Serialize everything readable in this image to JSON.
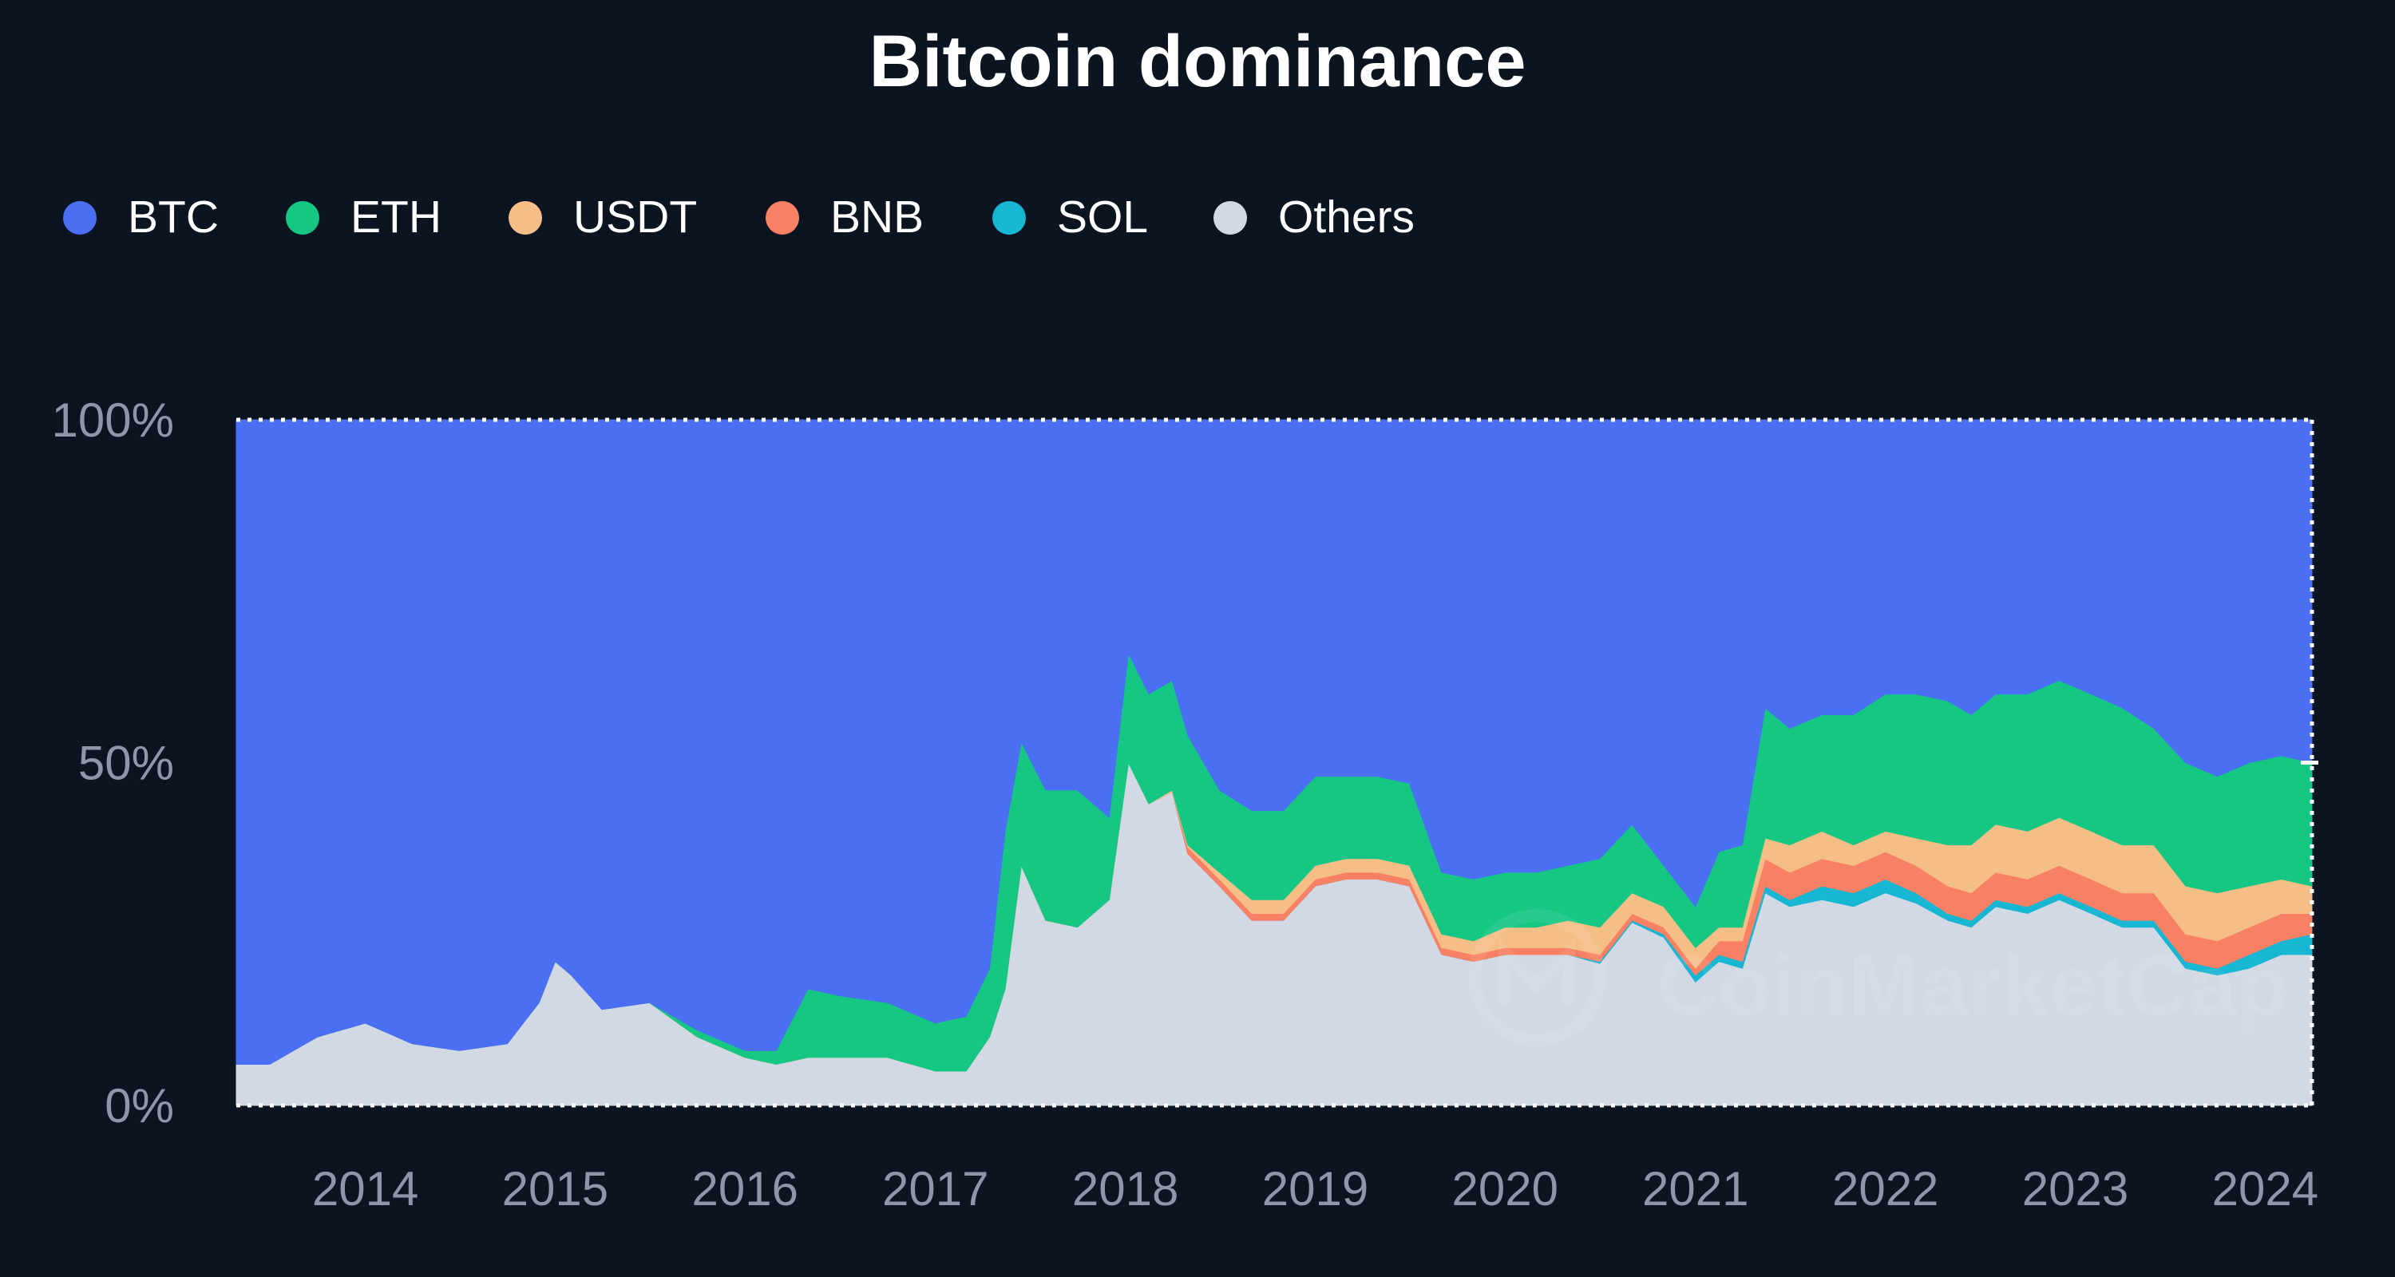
{
  "chart_data": {
    "type": "area",
    "stacked": true,
    "title": "Bitcoin dominance",
    "watermark": "CoinMarketCap",
    "legend_position": "top-left",
    "grid": false,
    "y_ticks": [
      "100%",
      "50%",
      "0%"
    ],
    "ylim": [
      0,
      100
    ],
    "x_ticks": [
      "2014",
      "2015",
      "2016",
      "2017",
      "2018",
      "2019",
      "2020",
      "2021",
      "2022",
      "2023",
      "2024"
    ],
    "x_range": [
      "2013-04-28",
      "2024-03-31"
    ],
    "colors": {
      "background": "#0d1421",
      "title": "#ffffff",
      "legend_text": "#ffffff",
      "tick_text": "#8e97a8",
      "axis_line": "#ffffff"
    },
    "series": [
      {
        "name": "Others",
        "color": "#d3d9e4"
      },
      {
        "name": "SOL",
        "color": "#17b6d2"
      },
      {
        "name": "BNB",
        "color": "#f88064"
      },
      {
        "name": "USDT",
        "color": "#f5be87"
      },
      {
        "name": "ETH",
        "color": "#16c784"
      },
      {
        "name": "BTC",
        "color": "#4a6ff3"
      }
    ],
    "legend_order": [
      "BTC",
      "ETH",
      "USDT",
      "BNB",
      "SOL",
      "Others"
    ],
    "x": [
      "2013-04-28",
      "2013-07-01",
      "2013-10-01",
      "2014-01-01",
      "2014-04-01",
      "2014-07-01",
      "2014-10-01",
      "2014-12-01",
      "2015-01-01",
      "2015-02-01",
      "2015-04-01",
      "2015-07-01",
      "2015-10-01",
      "2016-01-01",
      "2016-03-01",
      "2016-05-01",
      "2016-07-01",
      "2016-10-01",
      "2017-01-01",
      "2017-03-01",
      "2017-04-15",
      "2017-05-15",
      "2017-06-15",
      "2017-08-01",
      "2017-10-01",
      "2017-12-01",
      "2018-01-07",
      "2018-02-15",
      "2018-04-01",
      "2018-05-01",
      "2018-07-01",
      "2018-09-01",
      "2018-11-01",
      "2019-01-01",
      "2019-03-01",
      "2019-05-01",
      "2019-07-01",
      "2019-09-01",
      "2019-11-01",
      "2020-01-01",
      "2020-03-01",
      "2020-05-01",
      "2020-07-01",
      "2020-09-01",
      "2020-11-01",
      "2021-01-01",
      "2021-02-15",
      "2021-04-01",
      "2021-05-15",
      "2021-07-01",
      "2021-09-01",
      "2021-11-01",
      "2022-01-01",
      "2022-03-01",
      "2022-05-01",
      "2022-06-15",
      "2022-08-01",
      "2022-10-01",
      "2022-12-01",
      "2023-02-01",
      "2023-04-01",
      "2023-06-01",
      "2023-08-01",
      "2023-10-01",
      "2023-12-01",
      "2024-02-01",
      "2024-03-31"
    ],
    "BTC": [
      94,
      94,
      90,
      88,
      91,
      92,
      91,
      85,
      79,
      81,
      86,
      85,
      89,
      92,
      92,
      83,
      84,
      85,
      88,
      87,
      80,
      60,
      47,
      54,
      54,
      58,
      34,
      40,
      38,
      46,
      54,
      57,
      57,
      52,
      52,
      52,
      53,
      66,
      67,
      66,
      66,
      65,
      64,
      59,
      65,
      71,
      63,
      62,
      42,
      45,
      43,
      43,
      40,
      40,
      41,
      43,
      40,
      40,
      38,
      40,
      42,
      45,
      50,
      52,
      50,
      49,
      50
    ],
    "ETH": [
      0,
      0,
      0,
      0,
      0,
      0,
      0,
      0,
      0,
      0,
      0,
      0,
      1,
      1,
      2,
      10,
      9,
      8,
      7,
      8,
      10,
      23,
      18,
      19,
      20,
      12,
      16,
      16,
      16,
      16,
      12,
      13,
      13,
      13,
      12,
      12,
      12,
      9,
      9,
      8,
      8,
      8,
      10,
      10,
      6,
      6,
      11,
      12,
      19,
      17,
      17,
      19,
      20,
      21,
      21,
      19,
      19,
      20,
      20,
      20,
      20,
      17,
      18,
      17,
      18,
      18,
      18
    ],
    "USDT": [
      0,
      0,
      0,
      0,
      0,
      0,
      0,
      0,
      0,
      0,
      0,
      0,
      0,
      0,
      0,
      0,
      0,
      0,
      0,
      0,
      0,
      0,
      0,
      0,
      0,
      0,
      0,
      0,
      0.3,
      0.3,
      1,
      2,
      2,
      2,
      2,
      2,
      2,
      2,
      2,
      3,
      3,
      4,
      4,
      3,
      3,
      3,
      2,
      2,
      3,
      4,
      4,
      3,
      3,
      4,
      6,
      7,
      7,
      7,
      7,
      7,
      7,
      7,
      7,
      7,
      6,
      5,
      4
    ],
    "BNB": [
      0,
      0,
      0,
      0,
      0,
      0,
      0,
      0,
      0,
      0,
      0,
      0,
      0,
      0,
      0,
      0,
      0,
      0,
      0,
      0,
      0,
      0,
      0,
      0,
      0,
      0,
      0,
      0,
      0,
      1,
      1,
      1,
      1,
      1,
      1,
      1,
      1,
      1,
      1,
      1,
      1,
      1,
      1,
      1,
      1,
      1,
      2,
      3,
      4,
      4,
      4,
      4,
      4,
      4,
      4,
      4,
      4,
      4,
      4,
      4,
      4,
      4,
      4,
      4,
      4,
      4,
      3
    ],
    "SOL": [
      0,
      0,
      0,
      0,
      0,
      0,
      0,
      0,
      0,
      0,
      0,
      0,
      0,
      0,
      0,
      0,
      0,
      0,
      0,
      0,
      0,
      0,
      0,
      0,
      0,
      0,
      0,
      0,
      0,
      0,
      0,
      0,
      0,
      0,
      0,
      0,
      0,
      0,
      0,
      0,
      0,
      0,
      0.3,
      0.3,
      0.5,
      1,
      1,
      1,
      1,
      1,
      2,
      2,
      2,
      1.5,
      1,
      1,
      1,
      1,
      1,
      1,
      1,
      1,
      1,
      1,
      2,
      2,
      3
    ],
    "Others": [
      6,
      6,
      10,
      12,
      9,
      8,
      9,
      15,
      21,
      19,
      14,
      15,
      10,
      7,
      6,
      7,
      7,
      7,
      5,
      5,
      10,
      17,
      35,
      27,
      26,
      30,
      50,
      44,
      45.7,
      36.7,
      32,
      27,
      27,
      32,
      33,
      33,
      32,
      22,
      21,
      22,
      22,
      22,
      20.7,
      26.7,
      24.5,
      18,
      21,
      20,
      31,
      29,
      30,
      29,
      31,
      29.5,
      27,
      26,
      29,
      28,
      30,
      28,
      26,
      26,
      20,
      19,
      20,
      22,
      22
    ]
  }
}
